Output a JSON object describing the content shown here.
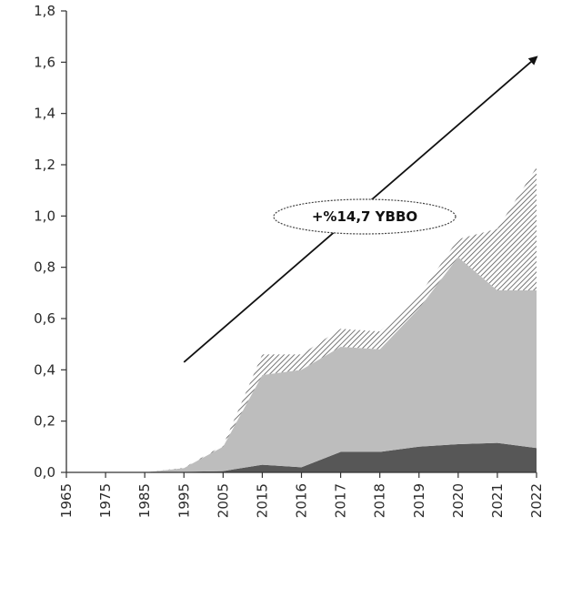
{
  "chart_data": {
    "type": "area",
    "stacked": true,
    "x": [
      "1965",
      "1975",
      "1985",
      "1995",
      "2005",
      "2015",
      "2016",
      "2017",
      "2018",
      "2019",
      "2020",
      "2021",
      "2022"
    ],
    "ylim": [
      0,
      1.8
    ],
    "yticks": [
      "0,0",
      "0,2",
      "0,4",
      "0,6",
      "0,8",
      "1,0",
      "1,2",
      "1,4",
      "1,6",
      "1,8"
    ],
    "grid": false,
    "series": [
      {
        "color": "#575757",
        "fill": "solid",
        "values": [
          0,
          0,
          0,
          0.002,
          0.005,
          0.03,
          0.02,
          0.08,
          0.08,
          0.1,
          0.11,
          0.115,
          0.095
        ]
      },
      {
        "color": "#bdbdbd",
        "fill": "solid",
        "values": [
          0,
          0,
          0,
          0.015,
          0.095,
          0.35,
          0.38,
          0.41,
          0.4,
          0.54,
          0.73,
          0.595,
          0.615
        ]
      },
      {
        "color": "#7a7a7a",
        "fill": "hatched",
        "values": [
          0,
          0,
          0,
          0.001,
          0.005,
          0.08,
          0.06,
          0.07,
          0.07,
          0.05,
          0.07,
          0.24,
          0.48
        ]
      }
    ],
    "annotation": {
      "label": "+%14,7 YBBO",
      "from": {
        "x": "1995",
        "y": 0.43
      },
      "to": {
        "x": "2022",
        "y": 1.62
      }
    }
  }
}
